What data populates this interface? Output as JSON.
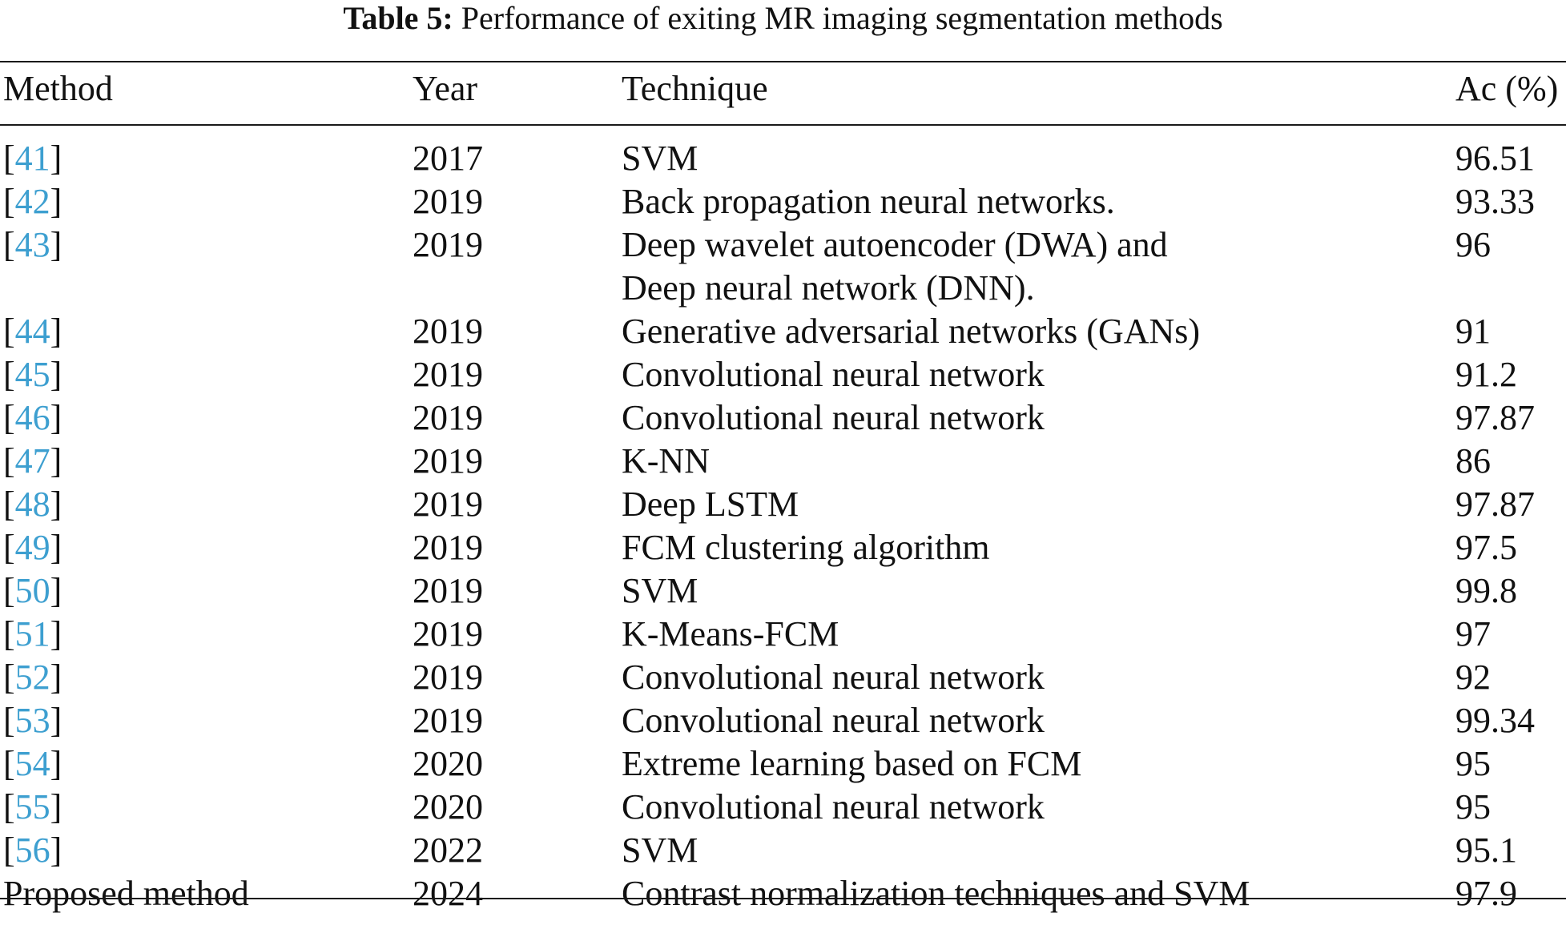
{
  "caption": {
    "label": "Table 5:",
    "text": "Performance of exiting MR imaging segmentation methods"
  },
  "headers": {
    "method": "Method",
    "year": "Year",
    "technique": "Technique",
    "accuracy": "Ac (%)"
  },
  "rows": [
    {
      "ref": "41",
      "year": "2017",
      "technique": [
        "SVM"
      ],
      "acc": "96.51"
    },
    {
      "ref": "42",
      "year": "2019",
      "technique": [
        "Back propagation neural networks."
      ],
      "acc": "93.33"
    },
    {
      "ref": "43",
      "year": "2019",
      "technique": [
        "Deep wavelet autoencoder (DWA) and",
        "Deep neural network (DNN)."
      ],
      "acc": "96"
    },
    {
      "ref": "44",
      "year": "2019",
      "technique": [
        "Generative adversarial networks (GANs)"
      ],
      "acc": "91"
    },
    {
      "ref": "45",
      "year": "2019",
      "technique": [
        "Convolutional neural network"
      ],
      "acc": "91.2"
    },
    {
      "ref": "46",
      "year": "2019",
      "technique": [
        "Convolutional neural network"
      ],
      "acc": "97.87"
    },
    {
      "ref": "47",
      "year": "2019",
      "technique": [
        "K-NN"
      ],
      "acc": "86"
    },
    {
      "ref": "48",
      "year": "2019",
      "technique": [
        "Deep LSTM"
      ],
      "acc": "97.87"
    },
    {
      "ref": "49",
      "year": "2019",
      "technique": [
        "FCM clustering algorithm"
      ],
      "acc": "97.5"
    },
    {
      "ref": "50",
      "year": "2019",
      "technique": [
        "SVM"
      ],
      "acc": "99.8"
    },
    {
      "ref": "51",
      "year": "2019",
      "technique": [
        "K-Means-FCM"
      ],
      "acc": "97"
    },
    {
      "ref": "52",
      "year": "2019",
      "technique": [
        "Convolutional neural network"
      ],
      "acc": "92"
    },
    {
      "ref": "53",
      "year": "2019",
      "technique": [
        "Convolutional neural network"
      ],
      "acc": "99.34"
    },
    {
      "ref": "54",
      "year": "2020",
      "technique": [
        "Extreme learning based on FCM"
      ],
      "acc": "95"
    },
    {
      "ref": "55",
      "year": "2020",
      "technique": [
        "Convolutional neural network"
      ],
      "acc": "95"
    },
    {
      "ref": "56",
      "year": "2022",
      "technique": [
        "SVM"
      ],
      "acc": "95.1"
    },
    {
      "method": "Proposed method",
      "year": "2024",
      "technique": [
        "Contrast normalization techniques and SVM"
      ],
      "acc": "97.9"
    }
  ],
  "colors": {
    "link": "#3d9fd0",
    "text": "#111111",
    "rule": "#1a1a1a"
  }
}
